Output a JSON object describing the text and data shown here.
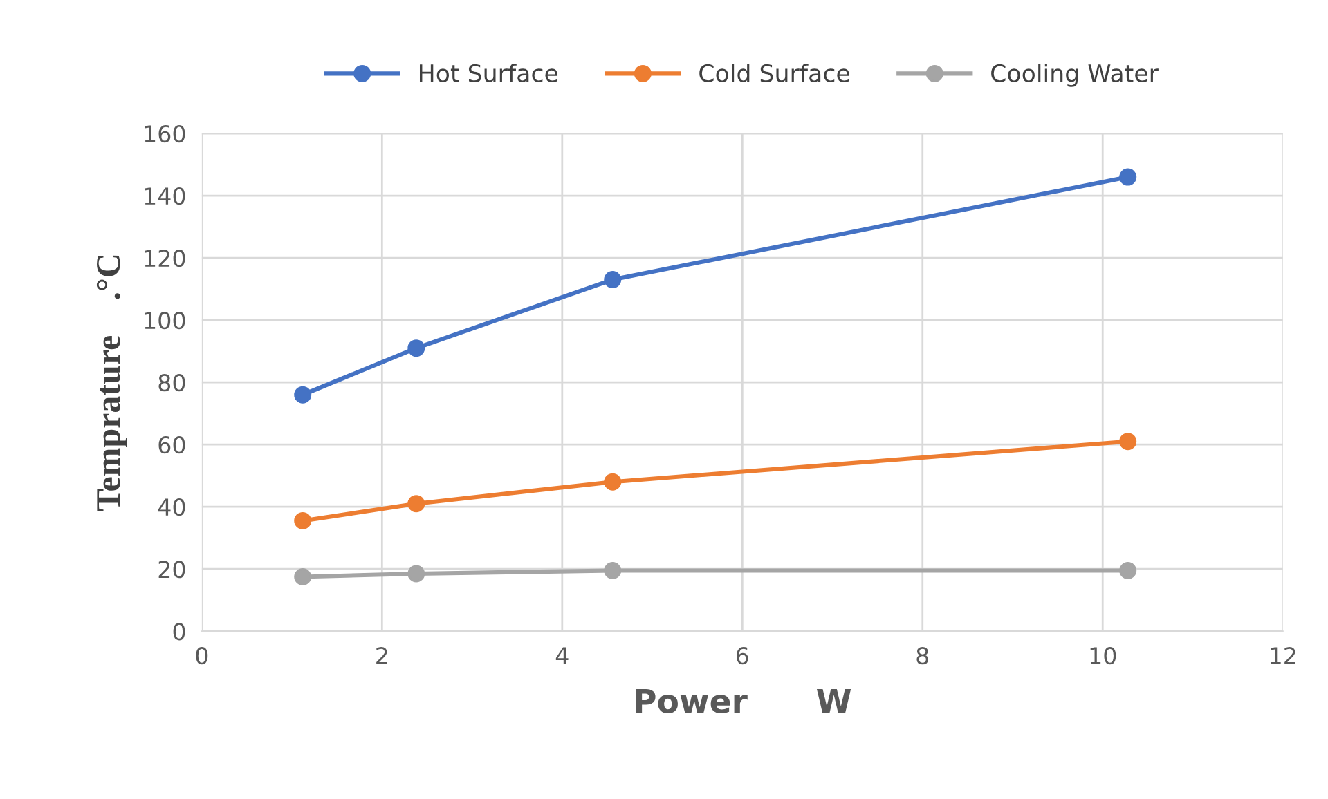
{
  "chart_data": {
    "type": "line",
    "xlabel": "Power      W",
    "ylabel": "Temprature    .°C",
    "series": [
      {
        "name": "Hot Surface",
        "color": "#4472c4",
        "x": [
          1.12,
          2.38,
          4.56,
          10.28
        ],
        "values": [
          76,
          91,
          113,
          146
        ]
      },
      {
        "name": "Cold Surface",
        "color": "#ed7d31",
        "x": [
          1.12,
          2.38,
          4.56,
          10.28
        ],
        "values": [
          35.5,
          41,
          48,
          61
        ]
      },
      {
        "name": "Cooling Water",
        "color": "#a5a5a5",
        "x": [
          1.12,
          2.38,
          4.56,
          10.28
        ],
        "values": [
          17.5,
          18.5,
          19.5,
          19.5
        ]
      }
    ],
    "xlim": [
      0,
      12
    ],
    "xticks": [
      0,
      2,
      4,
      6,
      8,
      10,
      12
    ],
    "ylim": [
      0,
      160
    ],
    "yticks": [
      0,
      20,
      40,
      60,
      80,
      100,
      120,
      140,
      160
    ],
    "grid": true,
    "legend": "top",
    "marker": "circle",
    "line_style": "solid"
  }
}
